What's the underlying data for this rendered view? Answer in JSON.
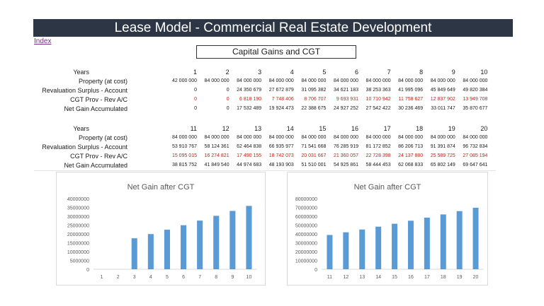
{
  "title": "Lease Model - Commercial Real Estate Development",
  "index_link": "Index",
  "section_title": "Capital Gains and CGT",
  "table1": {
    "years_label": "Years",
    "years": [
      "1",
      "2",
      "3",
      "4",
      "5",
      "6",
      "7",
      "8",
      "9",
      "10"
    ],
    "rows": [
      {
        "label": "Property (at cost)",
        "values": [
          "42 000 000",
          "84 000 000",
          "84 000 000",
          "84 000 000",
          "84 000 000",
          "84 000 000",
          "84 000 000",
          "84 000 000",
          "84 000 000",
          "84 000 000"
        ],
        "red": false
      },
      {
        "label": "Revaluation Surplus - Account",
        "values": [
          "0",
          "0",
          "24 350 679",
          "27 672 879",
          "31 095 382",
          "34 621 183",
          "38 253 363",
          "41 995 096",
          "45 849 649",
          "49 820 384"
        ],
        "red": false
      },
      {
        "label": "CGT Prov - Rev A/C",
        "values": [
          "0",
          "0",
          "6 818 190",
          "7 748 406",
          "8 706 707",
          "9 693 931",
          "10 710 942",
          "11 758 627",
          "12 837 902",
          "13 949 708"
        ],
        "red": true
      },
      {
        "label": "Net Gain Accumulated",
        "values": [
          "0",
          "0",
          "17 532 489",
          "19 924 473",
          "22 388 675",
          "24 927 252",
          "27 542 422",
          "30 236 469",
          "33 011 747",
          "35 870 677"
        ],
        "red": false
      }
    ]
  },
  "table2": {
    "years_label": "Years",
    "years": [
      "11",
      "12",
      "13",
      "14",
      "15",
      "16",
      "17",
      "18",
      "19",
      "20"
    ],
    "rows": [
      {
        "label": "Property (at cost)",
        "values": [
          "84 000 000",
          "84 000 000",
          "84 000 000",
          "84 000 000",
          "84 000 000",
          "84 000 000",
          "84 000 000",
          "84 000 000",
          "84 000 000",
          "84 000 000"
        ],
        "red": false
      },
      {
        "label": "Revaluation Surplus - Account",
        "values": [
          "53 910 767",
          "58 124 361",
          "62 464 838",
          "66 935 977",
          "71 541 668",
          "76 285 919",
          "81 172 852",
          "86 206 713",
          "91 391 874",
          "96 732 834"
        ],
        "red": false
      },
      {
        "label": "CGT Prov - Rev A/C",
        "values": [
          "15 095 015",
          "16 274 821",
          "17 490 155",
          "18 742 073",
          "20 031 667",
          "21 360 057",
          "22 728 398",
          "24 137 880",
          "25 589 725",
          "27 085 194"
        ],
        "red": true
      },
      {
        "label": "Net Gain Accumulated",
        "values": [
          "38 815 752",
          "41 849 540",
          "44 974 683",
          "48 193 903",
          "51 510 001",
          "54 925 861",
          "58 444 453",
          "62 068 833",
          "65 802 149",
          "69 647 641"
        ],
        "red": false
      }
    ]
  },
  "chart_data": [
    {
      "type": "bar",
      "title": "Net Gain after CGT",
      "categories": [
        "1",
        "2",
        "3",
        "4",
        "5",
        "6",
        "7",
        "8",
        "9",
        "10"
      ],
      "values": [
        0,
        0,
        17532489,
        19924473,
        22388675,
        24927252,
        27542422,
        30236469,
        33011747,
        35870677
      ],
      "ylim": [
        0,
        40000000
      ],
      "yticks": [
        "40000000",
        "35000000",
        "30000000",
        "25000000",
        "20000000",
        "15000000",
        "10000000",
        "5000000",
        "0"
      ],
      "grid": false,
      "color": "#5b9bd5"
    },
    {
      "type": "bar",
      "title": "Net Gain after CGT",
      "categories": [
        "11",
        "12",
        "13",
        "14",
        "15",
        "16",
        "17",
        "18",
        "19",
        "20"
      ],
      "values": [
        38815752,
        41849540,
        44974683,
        48193903,
        51510001,
        54925861,
        58444453,
        62068833,
        65802149,
        69647641
      ],
      "ylim": [
        0,
        80000000
      ],
      "yticks": [
        "80000000",
        "70000000",
        "60000000",
        "50000000",
        "40000000",
        "30000000",
        "20000000",
        "10000000",
        "0"
      ],
      "grid": false,
      "color": "#5b9bd5"
    }
  ]
}
